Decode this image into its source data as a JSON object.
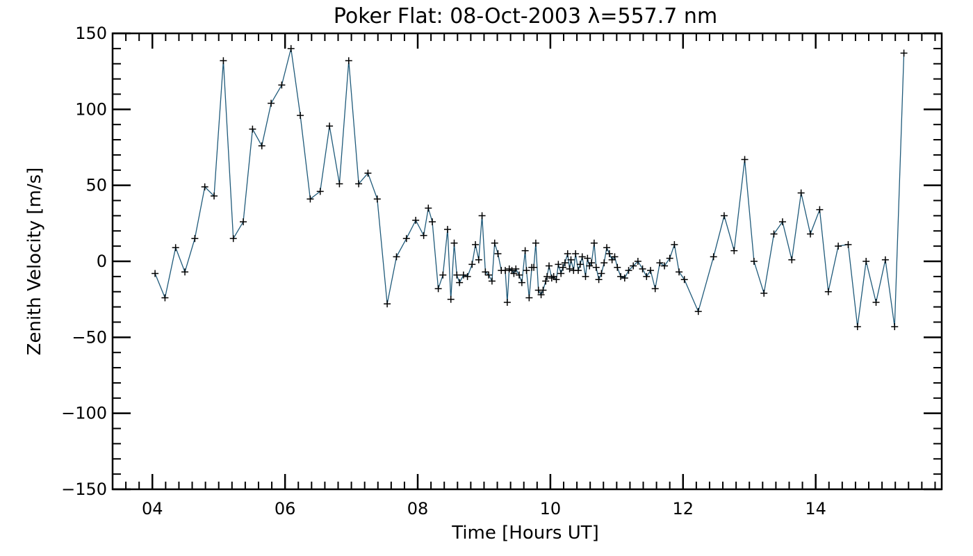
{
  "chart_data": {
    "type": "line",
    "title": "Poker Flat: 08-Oct-2003 λ=557.7 nm",
    "xlabel": "Time [Hours UT]",
    "ylabel": "Zenith Velocity [m/s]",
    "xlim": [
      3.4,
      15.9
    ],
    "ylim": [
      -150,
      150
    ],
    "x_ticks": [
      4,
      6,
      8,
      10,
      12,
      14
    ],
    "x_tick_labels": [
      "04",
      "06",
      "08",
      "10",
      "12",
      "14"
    ],
    "y_ticks": [
      -150,
      -100,
      -50,
      0,
      50,
      100,
      150
    ],
    "y_tick_labels": [
      "−150",
      "−100",
      "−50",
      "0",
      "50",
      "100",
      "150"
    ],
    "grid": false,
    "line_color": "#1f5a7a",
    "marker": "+",
    "series": [
      {
        "name": "Zenith Velocity",
        "x": [
          4.04,
          4.19,
          4.35,
          4.49,
          4.64,
          4.79,
          4.93,
          5.07,
          5.22,
          5.37,
          5.51,
          5.65,
          5.79,
          5.95,
          6.09,
          6.23,
          6.38,
          6.53,
          6.67,
          6.82,
          6.96,
          7.11,
          7.25,
          7.39,
          7.54,
          7.68,
          7.83,
          7.97,
          8.09,
          8.16,
          8.22,
          8.31,
          8.38,
          8.45,
          8.5,
          8.55,
          8.59,
          8.63,
          8.69,
          8.75,
          8.82,
          8.87,
          8.92,
          8.97,
          9.02,
          9.07,
          9.12,
          9.16,
          9.21,
          9.26,
          9.32,
          9.35,
          9.38,
          9.42,
          9.45,
          9.48,
          9.53,
          9.57,
          9.62,
          9.64,
          9.68,
          9.72,
          9.75,
          9.78,
          9.82,
          9.86,
          9.89,
          9.93,
          9.95,
          9.98,
          10.02,
          10.05,
          10.09,
          10.12,
          10.16,
          10.19,
          10.22,
          10.26,
          10.29,
          10.31,
          10.35,
          10.38,
          10.42,
          10.45,
          10.48,
          10.53,
          10.56,
          10.59,
          10.62,
          10.66,
          10.69,
          10.73,
          10.77,
          10.81,
          10.85,
          10.89,
          10.93,
          10.97,
          11.01,
          11.06,
          11.12,
          11.18,
          11.25,
          11.32,
          11.39,
          11.45,
          11.51,
          11.58,
          11.65,
          11.72,
          11.8,
          11.87,
          11.94,
          12.02,
          12.23,
          12.46,
          12.62,
          12.77,
          12.93,
          13.07,
          13.22,
          13.37,
          13.5,
          13.64,
          13.78,
          13.92,
          14.06,
          14.19,
          14.34,
          14.49,
          14.63,
          14.76,
          14.91,
          15.05,
          15.19,
          15.33
        ],
        "y": [
          -8,
          -24,
          9,
          -7,
          15,
          49,
          43,
          132,
          15,
          26,
          87,
          76,
          104,
          116,
          140,
          96,
          41,
          46,
          89,
          51,
          132,
          51,
          58,
          41,
          -28,
          3,
          15,
          27,
          17,
          35,
          26,
          -18,
          -9,
          21,
          -25,
          12,
          -9,
          -14,
          -9,
          -10,
          -2,
          11,
          1,
          30,
          -7,
          -9,
          -13,
          12,
          5,
          -6,
          -6,
          -27,
          -5,
          -6,
          -8,
          -5,
          -9,
          -14,
          7,
          -6,
          -24,
          -4,
          -4,
          12,
          -19,
          -22,
          -19,
          -13,
          -10,
          -3,
          -11,
          -10,
          -12,
          -2,
          -8,
          -4,
          -1,
          5,
          -5,
          1,
          -6,
          5,
          -6,
          -2,
          3,
          -10,
          2,
          -3,
          -1,
          12,
          -4,
          -12,
          -8,
          -1,
          9,
          5,
          1,
          3,
          -4,
          -10,
          -11,
          -6,
          -3,
          0,
          -5,
          -10,
          -6,
          -18,
          -1,
          -3,
          2,
          11,
          -7,
          -12,
          -33,
          3,
          30,
          7,
          67,
          0,
          -21,
          18,
          26,
          1,
          45,
          18,
          34,
          -20,
          10,
          11,
          -43,
          0,
          -27,
          1,
          -43,
          137
        ]
      }
    ]
  }
}
